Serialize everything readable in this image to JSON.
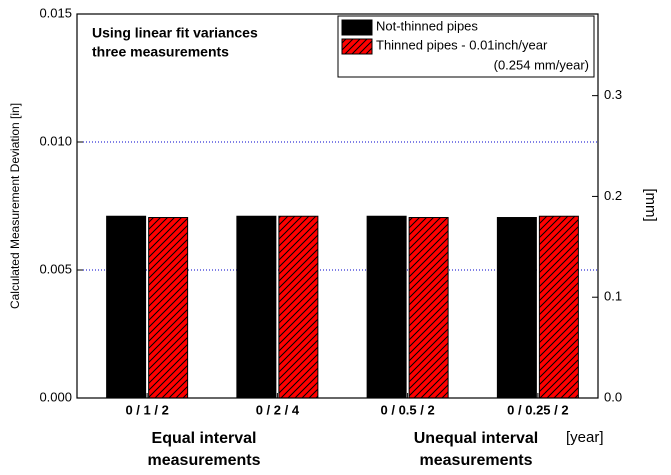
{
  "chart_data": {
    "type": "bar",
    "annotation": [
      "Using linear fit variances",
      "three measurements"
    ],
    "categories": [
      "0 / 1 / 2",
      "0 / 2 / 4",
      "0 / 0.5 / 2",
      "0 / 0.25 / 2"
    ],
    "series": [
      {
        "name": "Not-thinned pipes",
        "color": "#000000",
        "values": [
          0.0071,
          0.0071,
          0.0071,
          0.00705
        ]
      },
      {
        "name": "Thinned pipes - 0.01inch/year",
        "color": "#ff0000",
        "hatch": true,
        "values": [
          0.00705,
          0.0071,
          0.00705,
          0.0071
        ]
      }
    ],
    "legend_note": "(0.254 mm/year)",
    "ylabel": "Calculated Measurement Deviation [in]",
    "ylim": [
      0,
      0.015
    ],
    "yticks": [
      {
        "value": 0,
        "label": "0.000"
      },
      {
        "value": 0.005,
        "label": "0.005"
      },
      {
        "value": 0.01,
        "label": "0.010"
      },
      {
        "value": 0.015,
        "label": "0.015"
      }
    ],
    "y2label": "[mm]",
    "y2lim": [
      0,
      0.381
    ],
    "y2ticks": [
      {
        "value": 0,
        "label": "0.0"
      },
      0.1,
      0.2,
      0.3
    ],
    "grid": true,
    "grid_color": "#0000cc",
    "group_labels": [
      [
        "Equal interval",
        "measurements"
      ],
      [
        "Unequal interval",
        "measurements"
      ]
    ],
    "xunit": "[year]"
  }
}
